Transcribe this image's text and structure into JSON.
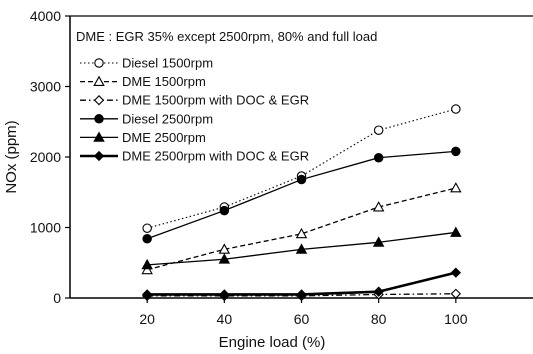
{
  "chart_data": {
    "type": "line",
    "ylabel": "NOx (ppm)",
    "xlabel": "Engine load (%)",
    "xlim": [
      0,
      120
    ],
    "ylim": [
      0,
      4000
    ],
    "x_ticks": [
      "20",
      "40",
      "60",
      "80",
      "100"
    ],
    "y_ticks": [
      "0",
      "1000",
      "2000",
      "3000",
      "4000"
    ],
    "x_tick_values": [
      20,
      40,
      60,
      80,
      100
    ],
    "y_tick_values": [
      0,
      1000,
      2000,
      3000,
      4000
    ],
    "grid": false,
    "legend_position": "top-left",
    "annotation": "DME : EGR 35% except 2500rpm, 80% and full load",
    "series": [
      {
        "name": "Diesel 1500rpm",
        "x": [
          20,
          40,
          60,
          80,
          100
        ],
        "values": [
          990,
          1290,
          1730,
          2380,
          2680
        ],
        "line": "dotted",
        "marker": "circle-open"
      },
      {
        "name": "DME 1500rpm",
        "x": [
          20,
          40,
          60,
          80,
          100
        ],
        "values": [
          400,
          690,
          910,
          1290,
          1560
        ],
        "line": "dashed",
        "marker": "triangle-open"
      },
      {
        "name": "DME 1500rpm with DOC & EGR",
        "x": [
          20,
          40,
          60,
          80,
          100
        ],
        "values": [
          30,
          30,
          30,
          50,
          60
        ],
        "line": "dashdot",
        "marker": "diamond-open"
      },
      {
        "name": "Diesel 2500rpm",
        "x": [
          20,
          40,
          60,
          80,
          100
        ],
        "values": [
          840,
          1240,
          1680,
          1990,
          2080
        ],
        "line": "solid",
        "marker": "circle-filled"
      },
      {
        "name": "DME 2500rpm",
        "x": [
          20,
          40,
          60,
          80,
          100
        ],
        "values": [
          470,
          550,
          690,
          790,
          930
        ],
        "line": "solid",
        "marker": "triangle-filled"
      },
      {
        "name": "DME 2500rpm with DOC & EGR",
        "x": [
          20,
          40,
          60,
          80,
          100
        ],
        "values": [
          50,
          50,
          50,
          90,
          360
        ],
        "line": "solid-thick",
        "marker": "diamond-filled"
      }
    ]
  }
}
